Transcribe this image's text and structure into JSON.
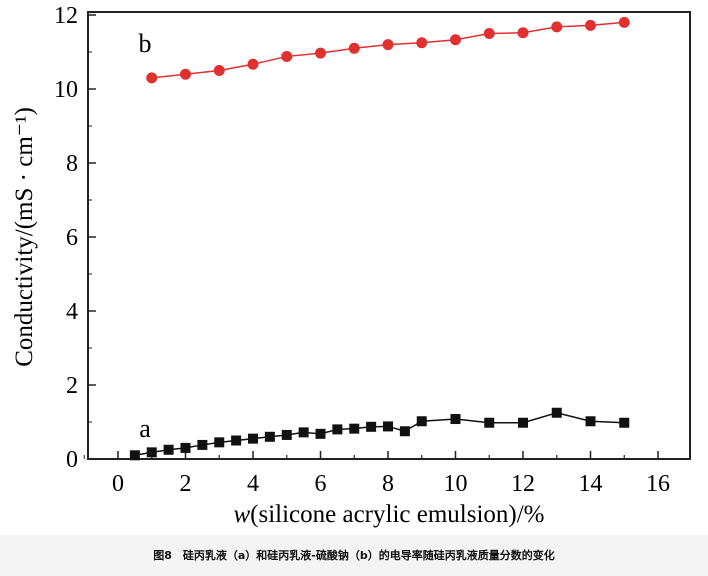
{
  "chart_data": {
    "type": "line",
    "xlabel_italic": "w",
    "xlabel": "(silicone acrylic emulsion)/%",
    "ylabel": "Conductivity/(mS · cm⁻¹)",
    "xlim": [
      -1,
      17
    ],
    "ylim": [
      0,
      12
    ],
    "xticks": [
      0,
      2,
      4,
      6,
      8,
      10,
      12,
      14,
      16
    ],
    "yticks": [
      0,
      2,
      4,
      6,
      8,
      10,
      12
    ],
    "grid": false,
    "series": [
      {
        "name": "a",
        "color": "#111111",
        "marker": "square",
        "x": [
          0.5,
          1,
          1.5,
          2,
          2.5,
          3,
          3.5,
          4,
          4.5,
          5,
          5.5,
          6,
          6.5,
          7,
          7.5,
          8,
          8.5,
          9,
          10,
          11,
          12,
          13,
          14,
          15
        ],
        "y": [
          0.1,
          0.18,
          0.25,
          0.3,
          0.38,
          0.45,
          0.5,
          0.55,
          0.6,
          0.65,
          0.72,
          0.68,
          0.8,
          0.82,
          0.87,
          0.88,
          0.75,
          1.02,
          1.08,
          0.98,
          0.98,
          1.25,
          1.02,
          0.98
        ]
      },
      {
        "name": "b",
        "color": "#e03030",
        "marker": "circle",
        "x": [
          1,
          2,
          3,
          4,
          5,
          6,
          7,
          8,
          9,
          10,
          11,
          12,
          13,
          14,
          15
        ],
        "y": [
          10.3,
          10.4,
          10.5,
          10.67,
          10.88,
          10.97,
          11.1,
          11.2,
          11.25,
          11.33,
          11.5,
          11.52,
          11.68,
          11.72,
          11.8
        ]
      }
    ]
  },
  "caption": "图8　硅丙乳液（a）和硅丙乳液-硫酸钠（b）的电导率随硅丙乳液质量分数的变化"
}
